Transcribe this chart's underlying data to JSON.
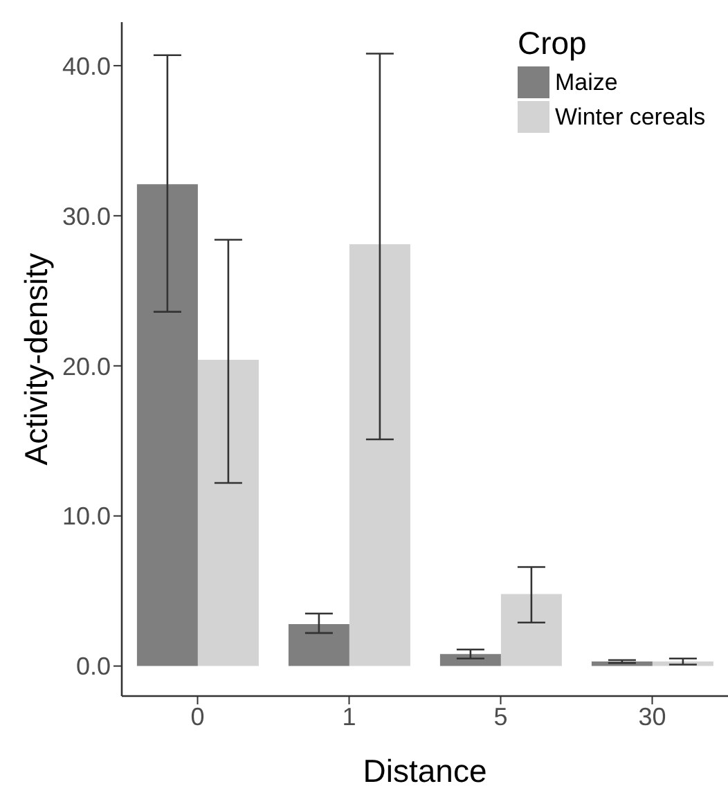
{
  "chart_data": {
    "type": "bar",
    "xlabel": "Distance",
    "ylabel": "Activity-density",
    "legend_title": "Crop",
    "legend": "top right",
    "categories": [
      "0",
      "1",
      "5",
      "30"
    ],
    "series": [
      {
        "name": "Maize",
        "color": "#7f7f7f",
        "values": [
          32.1,
          2.8,
          0.8,
          0.3
        ],
        "errors": [
          [
            23.6,
            40.7
          ],
          [
            2.2,
            3.5
          ],
          [
            0.5,
            1.1
          ],
          [
            0.2,
            0.4
          ]
        ]
      },
      {
        "name": "Winter cereals",
        "color": "#d3d3d3",
        "values": [
          20.4,
          28.1,
          4.8,
          0.3
        ],
        "errors": [
          [
            12.2,
            28.4
          ],
          [
            15.1,
            40.8
          ],
          [
            2.9,
            6.6
          ],
          [
            0.1,
            0.5
          ]
        ]
      }
    ],
    "ylim": [
      -2,
      42.9
    ],
    "yticks": [
      {
        "value": 0,
        "label": "0.0"
      },
      {
        "value": 10,
        "label": "10.0"
      },
      {
        "value": 20,
        "label": "20.0"
      },
      {
        "value": 30,
        "label": "30.0"
      },
      {
        "value": 40,
        "label": "40.0"
      }
    ]
  }
}
